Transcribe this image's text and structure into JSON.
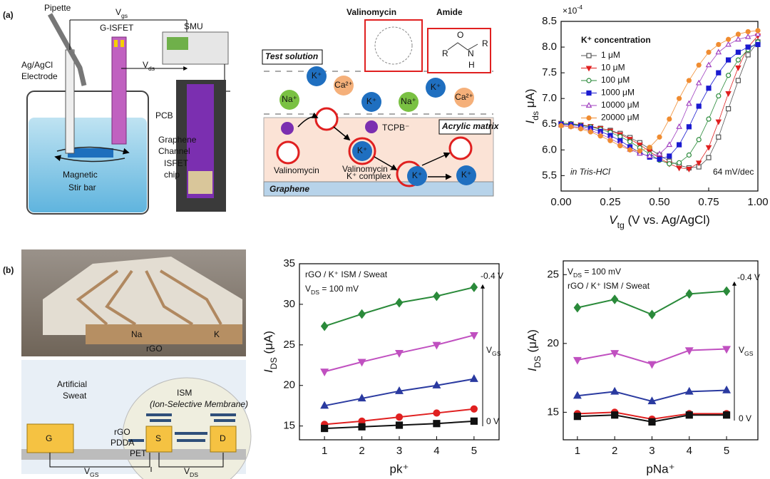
{
  "figure": {
    "panel_labels": [
      "(a)",
      "(b)"
    ],
    "setup": {
      "pipette": "Pipette",
      "vgs": {
        "text": "V",
        "sub": "gs"
      },
      "g_isfet": "G-ISFET",
      "smu": "SMU",
      "electrode": [
        "Ag/AgCl",
        "Electrode"
      ],
      "vds": {
        "text": "V",
        "sub": "ds"
      },
      "pcb": "PCB",
      "channel": [
        "Graphene",
        "Channel"
      ],
      "stir_bar": [
        "Magnetic",
        "Stir bar"
      ],
      "chip": [
        "ISFET",
        "chip"
      ]
    },
    "mechanism": {
      "valinomycin_title": "Valinomycin",
      "amide": "Amide",
      "amide_atoms": [
        "O",
        "R",
        "N",
        "R",
        "H"
      ],
      "test_solution": "Test solution",
      "acrylic_matrix": "Acrylic matrix",
      "graphene": "Graphene",
      "tcpb": "TCPB⁻",
      "valinomycin": "Valinomycin",
      "complex": [
        "Valinomycin –",
        "K⁺ complex"
      ],
      "ions": [
        "K⁺",
        "Ca²⁺",
        "Na⁺",
        "K⁺",
        "Na⁺",
        "K⁺",
        "Ca²⁺",
        "K⁺",
        "K⁺",
        "K⁺"
      ]
    },
    "device_photo": {
      "labels": [
        "Na",
        "K",
        "rGO"
      ]
    },
    "device_schematic": {
      "sweat": [
        "Artificial",
        "Sweat"
      ],
      "ism": "ISM",
      "ism_full": "(Ion-Selective Membrane)",
      "gate": "G",
      "source": "S",
      "drain": "D",
      "layers": [
        "rGO",
        "PDDA",
        "PET"
      ],
      "vgs": {
        "text": "V",
        "sub": "GS"
      },
      "vds": {
        "text": "V",
        "sub": "DS"
      }
    }
  },
  "chart_data": [
    {
      "type": "line",
      "axis_multiplier": {
        "text": "×10",
        "sup": "-4"
      },
      "x": [
        0,
        0.05,
        0.1,
        0.15,
        0.2,
        0.25,
        0.3,
        0.35,
        0.4,
        0.45,
        0.5,
        0.55,
        0.6,
        0.65,
        0.7,
        0.75,
        0.8,
        0.85,
        0.9,
        0.95,
        1
      ],
      "xlim": [
        0,
        1
      ],
      "xticks": [
        {
          "value": 0,
          "label": "0.00"
        },
        {
          "value": 0.25,
          "label": "0.25"
        },
        {
          "value": 0.5,
          "label": "0.50"
        },
        {
          "value": 0.75,
          "label": "0.75"
        },
        {
          "value": 1,
          "label": "1.00"
        }
      ],
      "ylim": [
        5.2,
        8.5
      ],
      "yticks": [
        5.5,
        {
          "value": 6,
          "label": "6.0"
        },
        6.5,
        {
          "value": 7,
          "label": "7.0"
        },
        7.5,
        {
          "value": 8,
          "label": "8.0"
        },
        8.5
      ],
      "x_label": {
        "text": "V",
        "sub": "tg",
        "tail": " (V vs. Ag/AgCl)"
      },
      "y_label": {
        "text": "I",
        "sub": "ds",
        "tail": " μA)"
      },
      "legend_title": "K⁺ concentration",
      "legend_position": "upper left",
      "annotations": [
        "in Tris-HCl",
        "64 mV/dec"
      ],
      "series": [
        {
          "name": "1 μM",
          "color": "#555555",
          "marker": "square",
          "filled": false,
          "values": [
            6.5,
            6.5,
            6.48,
            6.45,
            6.42,
            6.38,
            6.32,
            6.24,
            6.14,
            6.02,
            5.9,
            5.78,
            5.7,
            5.65,
            5.67,
            5.85,
            6.25,
            6.8,
            7.35,
            7.85,
            8.1
          ]
        },
        {
          "name": "10 μM",
          "color": "#e02020",
          "marker": "triangle-down",
          "filled": true,
          "values": [
            6.52,
            6.51,
            6.49,
            6.46,
            6.42,
            6.37,
            6.3,
            6.21,
            6.1,
            5.97,
            5.84,
            5.73,
            5.65,
            5.63,
            5.75,
            6.05,
            6.55,
            7.1,
            7.6,
            8.0,
            8.22
          ]
        },
        {
          "name": "100 μM",
          "color": "#2a8a3a",
          "marker": "circle",
          "filled": false,
          "values": [
            6.52,
            6.51,
            6.48,
            6.45,
            6.4,
            6.34,
            6.26,
            6.16,
            6.04,
            5.92,
            5.8,
            5.73,
            5.75,
            5.9,
            6.2,
            6.6,
            7.05,
            7.45,
            7.75,
            7.95,
            8.1
          ]
        },
        {
          "name": "1000 μM",
          "color": "#1a1ad0",
          "marker": "square",
          "filled": true,
          "values": [
            6.5,
            6.49,
            6.46,
            6.42,
            6.36,
            6.28,
            6.18,
            6.06,
            5.95,
            5.86,
            5.82,
            5.88,
            6.1,
            6.45,
            6.85,
            7.2,
            7.5,
            7.75,
            7.9,
            8.0,
            8.05
          ]
        },
        {
          "name": "10000 μM",
          "color": "#a040c0",
          "marker": "triangle-up",
          "filled": false,
          "values": [
            6.48,
            6.46,
            6.43,
            6.38,
            6.31,
            6.22,
            6.12,
            6.01,
            5.93,
            5.88,
            5.92,
            6.1,
            6.45,
            6.9,
            7.3,
            7.65,
            7.9,
            8.05,
            8.15,
            8.2,
            8.25
          ]
        },
        {
          "name": "20000 μM",
          "color": "#f08c30",
          "marker": "circle",
          "filled": true,
          "values": [
            6.47,
            6.45,
            6.41,
            6.35,
            6.27,
            6.18,
            6.08,
            6.0,
            5.98,
            6.05,
            6.25,
            6.6,
            7.0,
            7.35,
            7.65,
            7.9,
            8.05,
            8.15,
            8.25,
            8.3,
            8.32
          ]
        }
      ]
    },
    {
      "type": "line",
      "x": [
        1,
        2,
        3,
        4,
        5
      ],
      "xlim": [
        0.33,
        5.67
      ],
      "xticks": [
        1,
        2,
        3,
        4,
        5
      ],
      "ylim": [
        13.3,
        35
      ],
      "yticks": [
        15,
        20,
        25,
        30,
        35
      ],
      "x_label": "pk⁺",
      "y_label": {
        "text": "I",
        "sub": "DS",
        "tail": " (μA)"
      },
      "annotations": [
        "rGO / K⁺ ISM / Sweat",
        {
          "text": "V",
          "sub": "DS",
          "tail": " = 100 mV"
        },
        "-0.4 V",
        {
          "text": "V",
          "sub": "GS"
        },
        "0 V"
      ],
      "series": [
        {
          "color": "#2a8a3a",
          "marker": "diamond",
          "filled": true,
          "values": [
            27.3,
            28.8,
            30.2,
            31.0,
            32.1
          ]
        },
        {
          "color": "#c050c0",
          "marker": "triangle-down",
          "filled": true,
          "values": [
            21.7,
            22.9,
            24.0,
            25.0,
            26.2
          ]
        },
        {
          "color": "#2a3aa0",
          "marker": "triangle-up",
          "filled": true,
          "values": [
            17.5,
            18.4,
            19.3,
            20.0,
            20.8
          ]
        },
        {
          "color": "#e02020",
          "marker": "circle",
          "filled": true,
          "values": [
            15.2,
            15.6,
            16.1,
            16.6,
            17.1
          ]
        },
        {
          "color": "#111111",
          "marker": "square",
          "filled": true,
          "values": [
            14.7,
            14.9,
            15.1,
            15.3,
            15.6
          ]
        }
      ]
    },
    {
      "type": "line",
      "x": [
        1,
        2,
        3,
        4,
        5
      ],
      "xlim": [
        0.62,
        5.84
      ],
      "xticks": [
        1,
        2,
        3,
        4,
        5
      ],
      "ylim": [
        13,
        26
      ],
      "yticks": [
        15,
        20,
        25
      ],
      "x_label": "pNa⁺",
      "y_label": {
        "text": "I",
        "sub": "DS",
        "tail": " (μA)"
      },
      "annotations": [
        {
          "text": "V",
          "sub": "DS",
          "tail": " = 100 mV"
        },
        "rGO / K⁺ ISM / Sweat",
        "-0.4 V",
        {
          "text": "V",
          "sub": "GS"
        },
        "0 V"
      ],
      "series": [
        {
          "color": "#2a8a3a",
          "marker": "diamond",
          "filled": true,
          "values": [
            22.6,
            23.2,
            22.1,
            23.6,
            23.8
          ]
        },
        {
          "color": "#c050c0",
          "marker": "triangle-down",
          "filled": true,
          "values": [
            18.8,
            19.3,
            18.5,
            19.5,
            19.6
          ]
        },
        {
          "color": "#2a3aa0",
          "marker": "triangle-up",
          "filled": true,
          "values": [
            16.2,
            16.5,
            15.8,
            16.5,
            16.6
          ]
        },
        {
          "color": "#e02020",
          "marker": "circle",
          "filled": true,
          "values": [
            14.9,
            15.0,
            14.5,
            14.9,
            14.9
          ]
        },
        {
          "color": "#111111",
          "marker": "square",
          "filled": true,
          "values": [
            14.7,
            14.8,
            14.3,
            14.8,
            14.8
          ]
        }
      ]
    }
  ]
}
